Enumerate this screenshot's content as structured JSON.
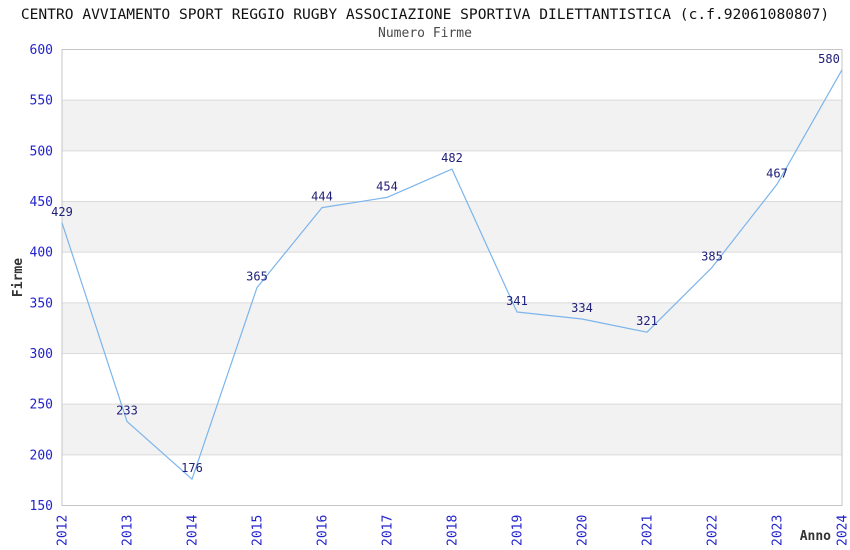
{
  "chart_data": {
    "type": "line",
    "title": "CENTRO AVVIAMENTO SPORT REGGIO RUGBY ASSOCIAZIONE SPORTIVA DILETTANTISTICA (c.f.92061080807)",
    "subtitle": "Numero Firme",
    "xlabel": "Anno",
    "ylabel": "Firme",
    "categories": [
      "2012",
      "2013",
      "2014",
      "2015",
      "2016",
      "2017",
      "2018",
      "2019",
      "2020",
      "2021",
      "2022",
      "2023",
      "2024"
    ],
    "values": [
      429,
      233,
      176,
      365,
      444,
      454,
      482,
      341,
      334,
      321,
      385,
      467,
      580
    ],
    "ylim": [
      150,
      600
    ],
    "ytick_step": 50,
    "yticks": [
      150,
      200,
      250,
      300,
      350,
      400,
      450,
      500,
      550,
      600
    ],
    "grid": true,
    "banded_background": true,
    "legend": "none",
    "colors": {
      "line": "#7cb5ec",
      "tick_label": "#2323cd",
      "data_label": "#20207a",
      "band": "#f2f2f2",
      "grid": "#dadada",
      "border": "#c6c6c6",
      "title": "#111111",
      "subtitle": "#4a4a4a",
      "axis_label": "#333333"
    }
  }
}
